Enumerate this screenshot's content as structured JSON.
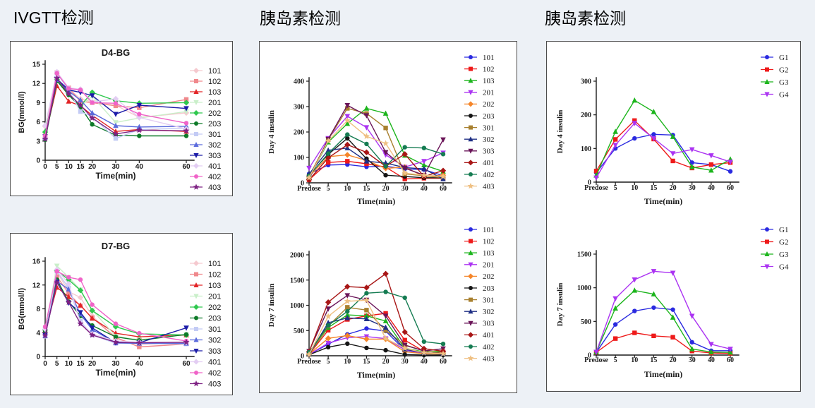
{
  "page": {
    "background": "#edf1f6"
  },
  "headers": [
    {
      "id": "ivgtt",
      "text": "IVGTT检测"
    },
    {
      "id": "insulin_individual",
      "text": "胰岛素检测"
    },
    {
      "id": "insulin_group",
      "text": "胰岛素检测"
    }
  ],
  "chart_data": [
    {
      "id": "d4_bg",
      "type": "line",
      "title": "D4-BG",
      "xlabel": "Time(min)",
      "ylabel": "BG(mmol/l)",
      "x_scale": "linear",
      "x": [
        0,
        5,
        10,
        15,
        20,
        30,
        40,
        60
      ],
      "x_tick_labels": [
        "0",
        "5",
        "10",
        "15",
        "20",
        "30",
        "40",
        "60"
      ],
      "ylim": [
        0,
        15
      ],
      "yticks": [
        0,
        3,
        6,
        9,
        12,
        15
      ],
      "grid": false,
      "legend_position": "right",
      "series": [
        {
          "name": "101",
          "color": "#F5C9CF",
          "marker": "diamond",
          "values": [
            5.3,
            13.5,
            11.2,
            9.6,
            9.1,
            8.6,
            6.7,
            7.4
          ]
        },
        {
          "name": "102",
          "color": "#F0888C",
          "marker": "square",
          "values": [
            3.8,
            13.7,
            11.3,
            9.2,
            9.0,
            8.5,
            8.2,
            9.5
          ]
        },
        {
          "name": "103",
          "color": "#E22426",
          "marker": "triangle",
          "values": [
            3.7,
            11.6,
            9.2,
            8.5,
            7.0,
            4.5,
            4.8,
            4.5
          ]
        },
        {
          "name": "201",
          "color": "#C9EFC9",
          "marker": "triangle-down",
          "values": [
            4.3,
            12.4,
            10.4,
            8.4,
            10.0,
            5.9,
            6.6,
            7.6
          ]
        },
        {
          "name": "202",
          "color": "#2FC84E",
          "marker": "diamond",
          "values": [
            4.4,
            12.6,
            10.4,
            8.5,
            10.6,
            9.3,
            8.9,
            9.0
          ]
        },
        {
          "name": "203",
          "color": "#0E7A28",
          "marker": "circle",
          "values": [
            3.2,
            12.4,
            10.2,
            8.3,
            5.6,
            3.9,
            3.8,
            3.8
          ]
        },
        {
          "name": "301",
          "color": "#C3CBF5",
          "marker": "square",
          "values": [
            3.5,
            13.6,
            11.0,
            7.6,
            6.8,
            3.4,
            4.8,
            5.0
          ]
        },
        {
          "name": "302",
          "color": "#5B6BDC",
          "marker": "triangle",
          "values": [
            3.6,
            12.6,
            10.8,
            9.4,
            7.4,
            5.4,
            5.2,
            5.3
          ]
        },
        {
          "name": "303",
          "color": "#1C1CA8",
          "marker": "triangle-down",
          "values": [
            3.7,
            12.7,
            11.0,
            10.6,
            10.1,
            7.2,
            8.6,
            8.1
          ]
        },
        {
          "name": "401",
          "color": "#E3CDF3",
          "marker": "diamond",
          "values": [
            5.4,
            13.8,
            11.3,
            11.1,
            9.1,
            9.6,
            6.7,
            4.9
          ]
        },
        {
          "name": "402",
          "color": "#F063C8",
          "marker": "circle",
          "values": [
            3.8,
            13.6,
            11.2,
            11.0,
            9.0,
            8.9,
            7.2,
            5.8
          ]
        },
        {
          "name": "403",
          "color": "#7E2283",
          "marker": "star",
          "values": [
            3.3,
            12.8,
            10.4,
            8.6,
            6.6,
            4.1,
            4.7,
            4.6
          ]
        }
      ]
    },
    {
      "id": "d7_bg",
      "type": "line",
      "title": "D7-BG",
      "xlabel": "Time(min)",
      "ylabel": "BG(mmol/l)",
      "x_scale": "linear",
      "x": [
        0,
        5,
        10,
        15,
        20,
        30,
        40,
        60
      ],
      "x_tick_labels": [
        "0",
        "5",
        "10",
        "15",
        "20",
        "30",
        "40",
        "60"
      ],
      "ylim": [
        0,
        16
      ],
      "yticks": [
        0,
        4,
        8,
        12,
        16
      ],
      "grid": false,
      "legend_position": "right",
      "series": [
        {
          "name": "101",
          "color": "#F5C9CF",
          "marker": "diamond",
          "values": [
            4.5,
            14.2,
            10.9,
            9.9,
            6.8,
            3.0,
            2.0,
            2.3
          ]
        },
        {
          "name": "102",
          "color": "#F0888C",
          "marker": "square",
          "values": [
            4.2,
            13.4,
            10.6,
            8.5,
            6.5,
            3.2,
            1.6,
            2.1
          ]
        },
        {
          "name": "103",
          "color": "#E22426",
          "marker": "triangle",
          "values": [
            4.3,
            11.6,
            10.0,
            8.6,
            6.4,
            3.9,
            3.3,
            3.6
          ]
        },
        {
          "name": "201",
          "color": "#C9EFC9",
          "marker": "triangle-down",
          "values": [
            4.6,
            15.2,
            13.3,
            11.2,
            7.8,
            3.4,
            2.8,
            3.7
          ]
        },
        {
          "name": "202",
          "color": "#2FC84E",
          "marker": "diamond",
          "values": [
            4.5,
            14.4,
            12.9,
            11.1,
            7.7,
            5.0,
            3.8,
            3.6
          ]
        },
        {
          "name": "203",
          "color": "#0E7A28",
          "marker": "circle",
          "values": [
            4.3,
            12.9,
            9.2,
            6.8,
            5.2,
            3.3,
            2.7,
            3.7
          ]
        },
        {
          "name": "301",
          "color": "#C3CBF5",
          "marker": "square",
          "values": [
            3.4,
            14.3,
            11.5,
            5.9,
            3.6,
            2.2,
            2.2,
            2.1
          ]
        },
        {
          "name": "302",
          "color": "#5B6BDC",
          "marker": "triangle",
          "values": [
            3.5,
            12.6,
            11.3,
            7.1,
            4.5,
            2.3,
            2.2,
            2.2
          ]
        },
        {
          "name": "303",
          "color": "#1C1CA8",
          "marker": "triangle-down",
          "values": [
            3.6,
            12.5,
            9.0,
            7.4,
            4.8,
            2.3,
            2.3,
            4.8
          ]
        },
        {
          "name": "401",
          "color": "#E3CDF3",
          "marker": "diamond",
          "values": [
            4.6,
            14.6,
            12.2,
            5.6,
            3.8,
            2.6,
            2.4,
            2.4
          ]
        },
        {
          "name": "402",
          "color": "#F063C8",
          "marker": "circle",
          "values": [
            5.0,
            14.3,
            13.3,
            12.9,
            8.7,
            5.5,
            3.9,
            2.6
          ]
        },
        {
          "name": "403",
          "color": "#7E2283",
          "marker": "star",
          "values": [
            3.5,
            12.4,
            9.1,
            5.5,
            3.6,
            2.4,
            2.3,
            2.4
          ]
        }
      ]
    },
    {
      "id": "day4_individual",
      "type": "line",
      "title": "",
      "xlabel": "Time(min)",
      "ylabel": "Day 4 insulin",
      "x_scale": "categorical",
      "categories": [
        "Predose",
        "5",
        "10",
        "15",
        "20",
        "30",
        "40",
        "60"
      ],
      "ylim": [
        0,
        400
      ],
      "yticks": [
        0,
        100,
        200,
        300,
        400
      ],
      "grid": false,
      "legend_position": "right",
      "series": [
        {
          "name": "101",
          "color": "#2A2AE0",
          "marker": "circle",
          "values": [
            35,
            70,
            72,
            63,
            65,
            55,
            52,
            28
          ]
        },
        {
          "name": "102",
          "color": "#EE1A1A",
          "marker": "square",
          "values": [
            12,
            80,
            85,
            75,
            62,
            15,
            18,
            18
          ]
        },
        {
          "name": "103",
          "color": "#1CB51C",
          "marker": "triangle",
          "values": [
            22,
            160,
            233,
            293,
            273,
            108,
            70,
            45
          ]
        },
        {
          "name": "201",
          "color": "#AB33F2",
          "marker": "triangle-down",
          "values": [
            58,
            175,
            262,
            218,
            110,
            62,
            85,
            118
          ]
        },
        {
          "name": "202",
          "color": "#F5862A",
          "marker": "diamond",
          "values": [
            25,
            103,
            110,
            88,
            57,
            62,
            25,
            30
          ]
        },
        {
          "name": "203",
          "color": "#151515",
          "marker": "circle",
          "values": [
            30,
            112,
            175,
            95,
            30,
            25,
            20,
            20
          ]
        },
        {
          "name": "301",
          "color": "#A8802F",
          "marker": "square",
          "values": [
            25,
            170,
            293,
            273,
            216,
            35,
            28,
            20
          ]
        },
        {
          "name": "302",
          "color": "#1F2F85",
          "marker": "triangle",
          "values": [
            35,
            128,
            137,
            85,
            78,
            60,
            55,
            15
          ]
        },
        {
          "name": "303",
          "color": "#6A1458",
          "marker": "triangle-down",
          "values": [
            15,
            172,
            305,
            265,
            120,
            58,
            30,
            170
          ]
        },
        {
          "name": "401",
          "color": "#A81616",
          "marker": "diamond",
          "values": [
            12,
            98,
            150,
            120,
            65,
            113,
            25,
            48
          ]
        },
        {
          "name": "402",
          "color": "#157C52",
          "marker": "circle",
          "values": [
            28,
            115,
            190,
            153,
            65,
            140,
            137,
            113
          ]
        },
        {
          "name": "403",
          "color": "#EFC083",
          "marker": "star",
          "values": [
            20,
            165,
            245,
            183,
            155,
            38,
            30,
            25
          ]
        }
      ]
    },
    {
      "id": "day7_individual",
      "type": "line",
      "title": "",
      "xlabel": "Time(min)",
      "ylabel": "Day 7 insulin",
      "x_scale": "categorical",
      "categories": [
        "Predose",
        "5",
        "10",
        "15",
        "20",
        "30",
        "40",
        "60"
      ],
      "ylim": [
        0,
        2000
      ],
      "yticks": [
        0,
        500,
        1000,
        1500,
        2000
      ],
      "grid": false,
      "legend_position": "right",
      "series": [
        {
          "name": "101",
          "color": "#2A2AE0",
          "marker": "circle",
          "values": [
            25,
            230,
            425,
            540,
            490,
            110,
            45,
            30
          ]
        },
        {
          "name": "102",
          "color": "#EE1A1A",
          "marker": "square",
          "values": [
            30,
            505,
            720,
            790,
            840,
            310,
            85,
            75
          ]
        },
        {
          "name": "103",
          "color": "#1CB51C",
          "marker": "triangle",
          "values": [
            40,
            560,
            810,
            790,
            690,
            150,
            75,
            90
          ]
        },
        {
          "name": "201",
          "color": "#AB33F2",
          "marker": "triangle-down",
          "values": [
            25,
            250,
            360,
            380,
            340,
            120,
            50,
            40
          ]
        },
        {
          "name": "202",
          "color": "#F5862A",
          "marker": "diamond",
          "values": [
            30,
            345,
            400,
            330,
            330,
            80,
            40,
            35
          ]
        },
        {
          "name": "203",
          "color": "#151515",
          "marker": "circle",
          "values": [
            20,
            170,
            240,
            155,
            110,
            25,
            15,
            15
          ]
        },
        {
          "name": "301",
          "color": "#A8802F",
          "marker": "square",
          "values": [
            25,
            590,
            960,
            905,
            500,
            215,
            95,
            50
          ]
        },
        {
          "name": "302",
          "color": "#1F2F85",
          "marker": "triangle",
          "values": [
            30,
            655,
            750,
            730,
            560,
            130,
            60,
            45
          ]
        },
        {
          "name": "303",
          "color": "#6A1458",
          "marker": "triangle-down",
          "values": [
            90,
            930,
            1195,
            1105,
            790,
            210,
            95,
            140
          ]
        },
        {
          "name": "401",
          "color": "#A81616",
          "marker": "diamond",
          "values": [
            80,
            1060,
            1370,
            1350,
            1625,
            470,
            140,
            90
          ]
        },
        {
          "name": "402",
          "color": "#157C52",
          "marker": "circle",
          "values": [
            70,
            600,
            880,
            1240,
            1265,
            1150,
            280,
            235
          ]
        },
        {
          "name": "403",
          "color": "#EFC083",
          "marker": "star",
          "values": [
            25,
            780,
            1080,
            1100,
            340,
            150,
            60,
            40
          ]
        }
      ]
    },
    {
      "id": "day4_group",
      "type": "line",
      "title": "",
      "xlabel": "Time(min)",
      "ylabel": "Day 4 insulin",
      "x_scale": "categorical",
      "categories": [
        "Predose",
        "5",
        "10",
        "15",
        "20",
        "30",
        "40",
        "60"
      ],
      "ylim": [
        0,
        300
      ],
      "yticks": [
        0,
        100,
        200,
        300
      ],
      "grid": false,
      "legend_position": "right",
      "series": [
        {
          "name": "G1",
          "color": "#2A2AE0",
          "marker": "circle",
          "values": [
            28,
            100,
            130,
            142,
            140,
            58,
            52,
            32
          ]
        },
        {
          "name": "G2",
          "color": "#EE1A1A",
          "marker": "square",
          "values": [
            33,
            127,
            183,
            128,
            63,
            42,
            52,
            58
          ]
        },
        {
          "name": "G3",
          "color": "#1CB51C",
          "marker": "triangle",
          "values": [
            20,
            150,
            243,
            209,
            135,
            45,
            35,
            68
          ]
        },
        {
          "name": "G4",
          "color": "#AB33F2",
          "marker": "triangle-down",
          "values": [
            13,
            110,
            175,
            130,
            85,
            97,
            79,
            60
          ]
        }
      ]
    },
    {
      "id": "day7_group",
      "type": "line",
      "title": "",
      "xlabel": "Time(min)",
      "ylabel": "Day 7 insulin",
      "x_scale": "categorical",
      "categories": [
        "Predose",
        "5",
        "10",
        "15",
        "20",
        "30",
        "40",
        "60"
      ],
      "ylim": [
        0,
        1500
      ],
      "yticks": [
        0,
        500,
        1000,
        1500
      ],
      "grid": false,
      "legend_position": "right",
      "series": [
        {
          "name": "G1",
          "color": "#2A2AE0",
          "marker": "circle",
          "values": [
            40,
            455,
            655,
            705,
            675,
            190,
            65,
            65
          ]
        },
        {
          "name": "G2",
          "color": "#EE1A1A",
          "marker": "square",
          "values": [
            40,
            245,
            330,
            285,
            265,
            60,
            30,
            25
          ]
        },
        {
          "name": "G3",
          "color": "#1CB51C",
          "marker": "triangle",
          "values": [
            45,
            695,
            960,
            905,
            560,
            90,
            45,
            40
          ]
        },
        {
          "name": "G4",
          "color": "#AB33F2",
          "marker": "triangle-down",
          "values": [
            45,
            840,
            1120,
            1245,
            1220,
            580,
            160,
            90
          ]
        }
      ]
    }
  ]
}
